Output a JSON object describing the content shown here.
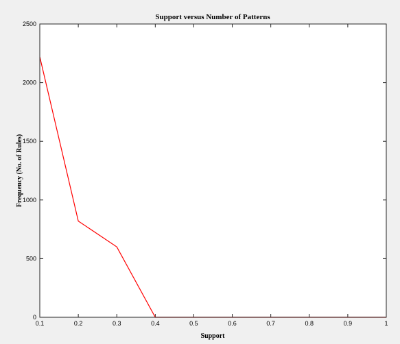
{
  "colors": {
    "figure_background": "#f0f0f0",
    "axes_background": "#ffffff",
    "axis_color": "#262626",
    "series_color": "#ff0000"
  },
  "chart_data": {
    "type": "line",
    "title": "Support versus Number of Patterns",
    "xlabel": "Support",
    "ylabel": "Frequency (No. of Rules)",
    "xlim": [
      0.1,
      1
    ],
    "ylim": [
      0,
      2500
    ],
    "xticks": [
      0.1,
      0.2,
      0.3,
      0.4,
      0.5,
      0.6,
      0.7,
      0.8,
      0.9,
      1
    ],
    "xtick_labels": [
      "0.1",
      "0.2",
      "0.3",
      "0.4",
      "0.5",
      "0.6",
      "0.7",
      "0.8",
      "0.9",
      "1"
    ],
    "yticks": [
      0,
      500,
      1000,
      1500,
      2000,
      2500
    ],
    "ytick_labels": [
      "0",
      "500",
      "1000",
      "1500",
      "2000",
      "2500"
    ],
    "grid": false,
    "legend": "none",
    "series": [
      {
        "color": "#ff0000",
        "x": [
          0.1,
          0.2,
          0.3,
          0.4,
          0.5,
          0.6,
          0.7,
          0.8,
          0.9,
          1.0
        ],
        "y": [
          2220,
          820,
          600,
          0,
          0,
          0,
          0,
          0,
          0,
          0
        ]
      }
    ]
  }
}
